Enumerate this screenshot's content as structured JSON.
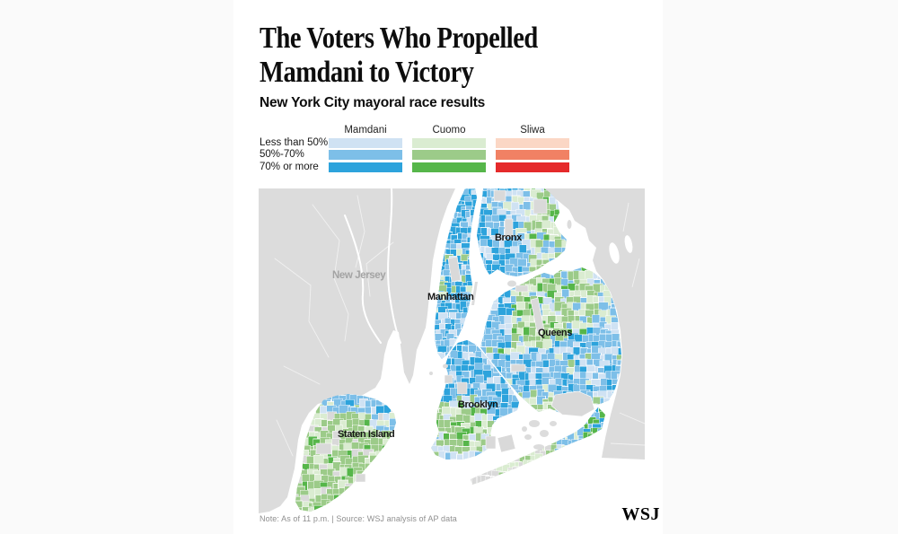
{
  "header": {
    "title_line1": "The Voters Who Propelled",
    "title_line2": "Mamdani to Victory",
    "subtitle": "New York City mayoral race results"
  },
  "legend": {
    "rows": [
      "Less than 50%",
      "50%-70%",
      "70% or more"
    ],
    "columns": [
      {
        "label": "Mamdani",
        "colors": [
          "#cfe2f3",
          "#7dbfe8",
          "#2da3dc"
        ]
      },
      {
        "label": "Cuomo",
        "colors": [
          "#daecd1",
          "#9ccb89",
          "#56b64a"
        ]
      },
      {
        "label": "Sliwa",
        "colors": [
          "#fbd7c5",
          "#f18164",
          "#e52a2b"
        ]
      }
    ]
  },
  "map": {
    "labels": {
      "new_jersey": "New Jersey",
      "bronx": "Bronx",
      "manhattan": "Manhattan",
      "queens": "Queens",
      "brooklyn": "Brooklyn",
      "staten_island": "Staten Island"
    },
    "land_color": "#dcdcdc",
    "park_color": "#d9d9d9",
    "water_color": "#ffffff",
    "borough_label_color": "#151515",
    "neighbor_label_color": "#a3a3a3"
  },
  "footer": {
    "note": "Note: As of 11 p.m. | Source: WSJ analysis of AP data",
    "logo": "WSJ"
  }
}
